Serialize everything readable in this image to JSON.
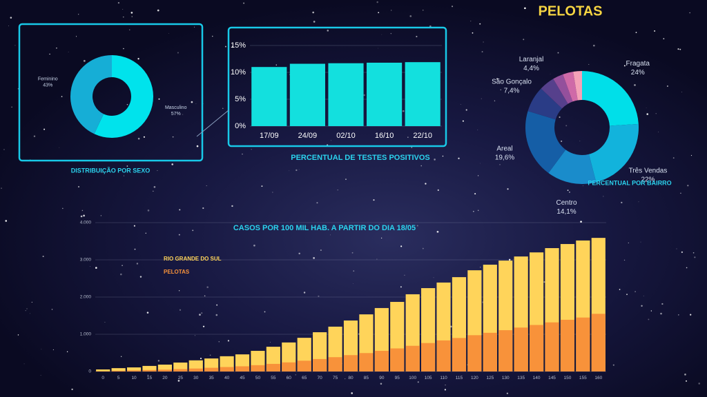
{
  "title": "PELOTAS",
  "chart_data": [
    {
      "type": "donut",
      "title": "DISTRIBUIÇÃO POR SEXO",
      "categories": [
        "Masculino",
        "Feminino"
      ],
      "values": [
        57,
        43
      ],
      "value_labels": [
        "57%",
        "43%"
      ],
      "colors": [
        "#00e3ec",
        "#16aed6"
      ]
    },
    {
      "type": "bar",
      "title": "PERCENTUAL DE TESTES POSITIVOS",
      "categories": [
        "17/09",
        "24/09",
        "02/10",
        "16/10",
        "22/10"
      ],
      "values": [
        11.0,
        11.6,
        11.7,
        11.8,
        11.9
      ],
      "color": "#13e0de",
      "ylim": [
        0,
        15
      ],
      "yticks": [
        {
          "value": 0,
          "label": "0%"
        },
        {
          "value": 5,
          "label": "5%"
        },
        {
          "value": 10,
          "label": "10%"
        },
        {
          "value": 15,
          "label": "15%"
        }
      ],
      "grid": true
    },
    {
      "type": "donut",
      "title": "PERCENTUAL POR BAIRRO",
      "categories": [
        "Fragata",
        "Três Vendas",
        "Centro",
        "Areal",
        "São Gonçalo",
        "Laranjal",
        null,
        null,
        null
      ],
      "values": [
        24,
        22,
        14.1,
        19.6,
        7.4,
        4.4,
        3,
        3,
        2.5
      ],
      "value_labels": [
        "24%",
        "22%",
        "14,1%",
        "19,6%",
        "7,4%",
        "4,4%",
        null,
        null,
        null
      ],
      "colors": [
        "#00dfe9",
        "#12b3dc",
        "#1a8ccb",
        "#155ea6",
        "#2a3c86",
        "#56408c",
        "#94509c",
        "#cf6aa8",
        "#f4a2b8"
      ]
    },
    {
      "type": "bar",
      "title": "CASOS POR 100 MIL HAB. A PARTIR DO DIA 18/05",
      "categories": [
        "0",
        "5",
        "10",
        "15",
        "20",
        "25",
        "30",
        "35",
        "40",
        "45",
        "50",
        "55",
        "60",
        "65",
        "70",
        "75",
        "80",
        "85",
        "90",
        "95",
        "100",
        "105",
        "110",
        "115",
        "120",
        "125",
        "130",
        "135",
        "140",
        "145",
        "150",
        "155",
        "160"
      ],
      "series": [
        {
          "name": "RIO GRANDE DO SUL",
          "color": "#ffd45a",
          "values": [
            55,
            90,
            110,
            150,
            185,
            240,
            300,
            350,
            410,
            460,
            555,
            665,
            780,
            905,
            1055,
            1205,
            1370,
            1535,
            1705,
            1870,
            2075,
            2240,
            2390,
            2535,
            2720,
            2870,
            2980,
            3090,
            3200,
            3315,
            3425,
            3520,
            3590
          ]
        },
        {
          "name": "PELOTAS",
          "color": "#f8923a",
          "values": [
            10,
            20,
            30,
            40,
            50,
            65,
            80,
            100,
            120,
            140,
            170,
            205,
            245,
            290,
            335,
            385,
            440,
            495,
            555,
            620,
            690,
            765,
            835,
            900,
            975,
            1040,
            1110,
            1180,
            1250,
            1320,
            1390,
            1450,
            1550
          ]
        }
      ],
      "ylim": [
        0,
        4000
      ],
      "yticks": [
        0,
        {
          "value": 1000,
          "label": "1.000"
        },
        {
          "value": 2000,
          "label": "2.000"
        },
        {
          "value": 3000,
          "label": "3.000"
        },
        {
          "value": 4000,
          "label": "4.000"
        }
      ],
      "grid": true
    }
  ]
}
